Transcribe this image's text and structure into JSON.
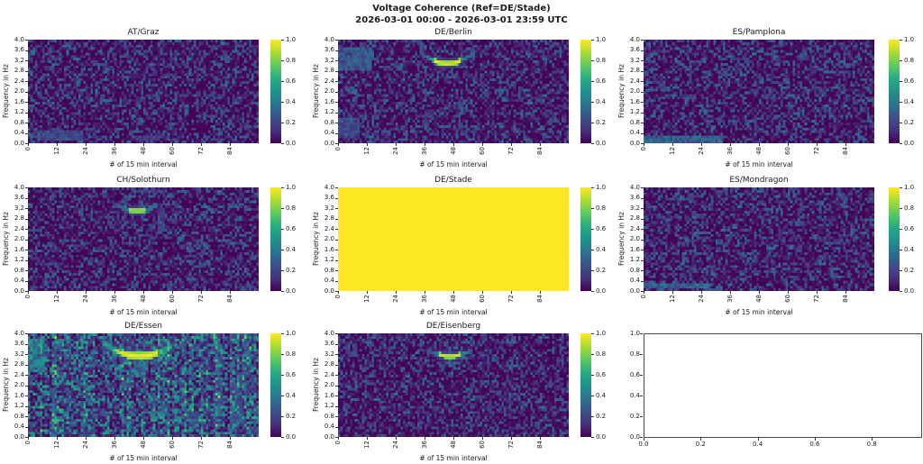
{
  "figure": {
    "suptitle": "Voltage Coherence (Ref=DE/Stade)",
    "subtitle": "2026-03-01 00:00 - 2026-03-01 23:59 UTC",
    "background": "#ffffff"
  },
  "axes_defaults": {
    "xlabel": "# of 15 min interval",
    "ylabel": "Frequency in Hz",
    "x_ticks": [
      0,
      12,
      24,
      36,
      48,
      60,
      72,
      84
    ],
    "x_max": 96,
    "y_ticks": [
      "0.0",
      "0.4",
      "0.8",
      "1.2",
      "1.6",
      "2.0",
      "2.4",
      "2.8",
      "3.2",
      "3.6",
      "4.0"
    ],
    "y_max_hz": 4.0,
    "colorbar_ticks": [
      "0.0",
      "0.2",
      "0.4",
      "0.6",
      "0.8",
      "1.0"
    ],
    "colorbar_range": [
      0,
      1
    ]
  },
  "colors": {
    "colormap": "viridis",
    "cmap_low": "#440154",
    "cmap_mid": "#21918c",
    "cmap_high": "#fde725",
    "text": "#1a1a1a",
    "background": "#ffffff"
  },
  "chart_data": [
    {
      "title": "AT/Graz",
      "type": "heatmap",
      "x_range": [
        0,
        95
      ],
      "y_range_hz": [
        0,
        4
      ],
      "value_range": [
        0,
        1
      ],
      "description": "Low coherence noise (~0.0-0.3) everywhere; slightly elevated speckle near 0.1-0.5 Hz around intervals 4-22 and 44-54.",
      "noise_level": 0.38,
      "noise_exp": 2.6,
      "seed": 11,
      "features": [
        {
          "type": "rect",
          "x0": 4,
          "x1": 22,
          "y0": 0.05,
          "y1": 0.5,
          "amp": 0.3
        },
        {
          "type": "rect",
          "x0": 44,
          "x1": 54,
          "y0": 0.05,
          "y1": 0.35,
          "amp": 0.24
        }
      ]
    },
    {
      "title": "DE/Berlin",
      "type": "heatmap",
      "x_range": [
        0,
        95
      ],
      "y_range_hz": [
        0,
        4
      ],
      "value_range": [
        0,
        1
      ],
      "description": "Noise background with a bright coherence arc dipping from ~3.45 Hz at interval 34 to ~3.08 Hz at interval 45 and back up by interval 56 (peak ~1.0); faint teal patch near 2.8-3.7 Hz at intervals 0-13.",
      "noise_level": 0.38,
      "noise_exp": 2.6,
      "seed": 22,
      "features": [
        {
          "type": "rect",
          "x0": 0,
          "x1": 13,
          "y0": 2.8,
          "y1": 3.7,
          "amp": 0.36
        },
        {
          "type": "rect",
          "x0": 0,
          "x1": 8,
          "y0": 0.2,
          "y1": 1.0,
          "amp": 0.28
        },
        {
          "type": "smile",
          "cx": 45,
          "ymin": 3.08,
          "k": 0.0033,
          "x0": 34,
          "x1": 56,
          "core": 5,
          "ampCore": 1.0,
          "ampArm": 0.52,
          "hw": 0.09
        }
      ]
    },
    {
      "title": "ES/Pamplona",
      "type": "heatmap",
      "x_range": [
        0,
        95
      ],
      "y_range_hz": [
        0,
        4
      ],
      "value_range": [
        0,
        1
      ],
      "description": "Low coherence noise; brighter horizontal band below ~0.25 Hz for intervals 0-32.",
      "noise_level": 0.38,
      "noise_exp": 2.6,
      "seed": 33,
      "features": [
        {
          "type": "rect",
          "x0": 0,
          "x1": 32,
          "y0": 0.02,
          "y1": 0.26,
          "amp": 0.42
        }
      ]
    },
    {
      "title": "CH/Solothurn",
      "type": "heatmap",
      "x_range": [
        0,
        95
      ],
      "y_range_hz": [
        0,
        4
      ],
      "value_range": [
        0,
        1
      ],
      "description": "Noise background with coherence arc from ~3.35 Hz at interval 37 dipping to ~3.1 Hz near interval 45, ending ~interval 53 (peak ~0.9); faint vertical streak near interval 55.",
      "noise_level": 0.38,
      "noise_exp": 2.6,
      "seed": 44,
      "features": [
        {
          "type": "smile",
          "cx": 45,
          "ymin": 3.1,
          "k": 0.003,
          "x0": 37,
          "x1": 53,
          "core": 3,
          "ampCore": 0.9,
          "ampArm": 0.5,
          "hw": 0.09
        },
        {
          "type": "rect",
          "x0": 54,
          "x1": 56,
          "y0": 2.3,
          "y1": 3.2,
          "amp": 0.24
        }
      ]
    },
    {
      "title": "DE/Stade",
      "type": "heatmap",
      "x_range": [
        0,
        95
      ],
      "y_range_hz": [
        0,
        4
      ],
      "value_range": [
        0,
        1
      ],
      "description": "Uniform coherence 1.0 (reference station with itself) - entire panel yellow.",
      "noise_level": 0,
      "seed": 55,
      "features": [
        {
          "type": "fill",
          "value": 1.0
        }
      ]
    },
    {
      "title": "ES/Mondragon",
      "type": "heatmap",
      "x_range": [
        0,
        95
      ],
      "y_range_hz": [
        0,
        4
      ],
      "value_range": [
        0,
        1
      ],
      "description": "Low coherence noise; brighter horizontal band near ~0.2 Hz for intervals 0-26.",
      "noise_level": 0.38,
      "noise_exp": 2.6,
      "seed": 66,
      "features": [
        {
          "type": "rect",
          "x0": 0,
          "x1": 26,
          "y0": 0.08,
          "y1": 0.32,
          "amp": 0.45
        }
      ]
    },
    {
      "title": "DE/Essen",
      "type": "heatmap",
      "x_range": [
        0,
        95
      ],
      "y_range_hz": [
        0,
        4
      ],
      "value_range": [
        0,
        1
      ],
      "description": "Noisier panel (teal speckle throughout) with a thick bright arc from ~3.6 Hz at interval 31 dipping to ~3.12 Hz near interval 46 and rising to ~3.5 Hz by interval 59 (peak ~1.0); vertical streak below the dip down to ~2.4 Hz; bright patch at left edge 2.5-3.8 Hz.",
      "noise_level": 0.58,
      "noise_exp": 2.0,
      "col_noise": 0.3,
      "seed": 77,
      "features": [
        {
          "type": "smile",
          "cx": 46,
          "ymin": 3.12,
          "k": 0.0022,
          "x0": 31,
          "x1": 59,
          "core": 7,
          "ampCore": 1.0,
          "ampArm": 0.8,
          "hw": 0.14
        },
        {
          "type": "rect",
          "x0": 44,
          "x1": 48,
          "y0": 2.35,
          "y1": 3.05,
          "amp": 0.5
        },
        {
          "type": "rect",
          "x0": 0,
          "x1": 6,
          "y0": 2.5,
          "y1": 3.8,
          "amp": 0.55
        },
        {
          "type": "rect",
          "x0": 84,
          "x1": 88,
          "y0": 0.5,
          "y1": 2.2,
          "amp": 0.28
        }
      ]
    },
    {
      "title": "DE/Eisenberg",
      "type": "heatmap",
      "x_range": [
        0,
        95
      ],
      "y_range_hz": [
        0,
        4
      ],
      "value_range": [
        0,
        1
      ],
      "description": "Noise background with coherence arc from ~3.35 Hz at interval 37 dipping to ~3.12 Hz near interval 46, ending ~interval 55 (peak ~0.95).",
      "noise_level": 0.38,
      "noise_exp": 2.6,
      "seed": 88,
      "features": [
        {
          "type": "smile",
          "cx": 46,
          "ymin": 3.12,
          "k": 0.0027,
          "x0": 37,
          "x1": 55,
          "core": 4,
          "ampCore": 0.95,
          "ampArm": 0.48,
          "hw": 0.09
        }
      ]
    },
    {
      "title": "",
      "type": "empty",
      "description": "Unused subplot: empty default axes, x 0.0-1.0, y 0.0-1.0, no data.",
      "x_ticks": [
        "0.0",
        "0.2",
        "0.4",
        "0.6",
        "0.8"
      ],
      "y_ticks": [
        "0.0",
        "0.2",
        "0.4",
        "0.6",
        "0.8",
        "1.0"
      ]
    }
  ]
}
